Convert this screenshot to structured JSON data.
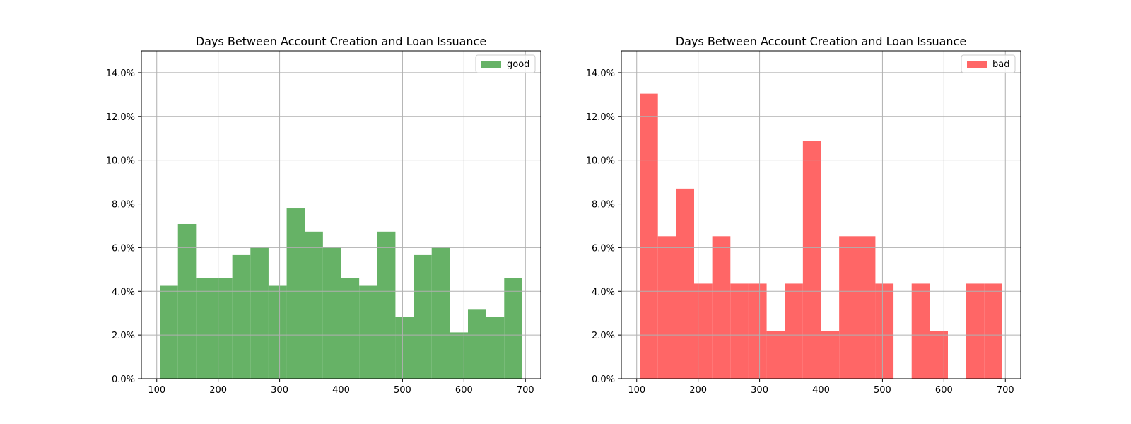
{
  "chart_data": [
    {
      "type": "bar",
      "title": "Days Between Account Creation and Loan Issuance",
      "xlabel": "",
      "ylabel": "",
      "xlim": [
        75,
        725
      ],
      "ylim": [
        0,
        0.15
      ],
      "xticks": [
        100,
        200,
        300,
        400,
        500,
        600,
        700
      ],
      "yticks": [
        0,
        0.02,
        0.04,
        0.06,
        0.08,
        0.1,
        0.12,
        0.14
      ],
      "ytick_labels": [
        "0.0%",
        "2.0%",
        "4.0%",
        "6.0%",
        "8.0%",
        "10.0%",
        "12.0%",
        "14.0%"
      ],
      "grid": true,
      "legend_position": "top-right",
      "series": [
        {
          "name": "good",
          "color": "#66b266",
          "bin_edges": [
            105,
            134.5,
            164,
            193.5,
            223,
            252.5,
            282,
            311.5,
            341,
            370.5,
            400,
            429.5,
            459,
            488.5,
            518,
            547.5,
            577,
            606.5,
            636,
            665.5,
            695
          ],
          "values": [
            0.0425,
            0.0708,
            0.046,
            0.046,
            0.0566,
            0.0602,
            0.0425,
            0.0779,
            0.0673,
            0.0602,
            0.046,
            0.0425,
            0.0673,
            0.0283,
            0.0566,
            0.0602,
            0.0212,
            0.0319,
            0.0283,
            0.046
          ]
        }
      ]
    },
    {
      "type": "bar",
      "title": "Days Between Account Creation and Loan Issuance",
      "xlabel": "",
      "ylabel": "",
      "xlim": [
        75,
        725
      ],
      "ylim": [
        0,
        0.15
      ],
      "xticks": [
        100,
        200,
        300,
        400,
        500,
        600,
        700
      ],
      "yticks": [
        0,
        0.02,
        0.04,
        0.06,
        0.08,
        0.1,
        0.12,
        0.14
      ],
      "ytick_labels": [
        "0.0%",
        "2.0%",
        "4.0%",
        "6.0%",
        "8.0%",
        "10.0%",
        "12.0%",
        "14.0%"
      ],
      "grid": true,
      "legend_position": "top-right",
      "series": [
        {
          "name": "bad",
          "color": "#ff6666",
          "bin_edges": [
            105,
            134.5,
            164,
            193.5,
            223,
            252.5,
            282,
            311.5,
            341,
            370.5,
            400,
            429.5,
            459,
            488.5,
            518,
            547.5,
            577,
            606.5,
            636,
            665.5,
            695
          ],
          "values": [
            0.1304,
            0.0652,
            0.087,
            0.0435,
            0.0652,
            0.0435,
            0.0435,
            0.0217,
            0.0435,
            0.1087,
            0.0217,
            0.0652,
            0.0652,
            0.0435,
            0.0,
            0.0435,
            0.0217,
            0.0,
            0.0435,
            0.0435
          ]
        }
      ]
    }
  ]
}
